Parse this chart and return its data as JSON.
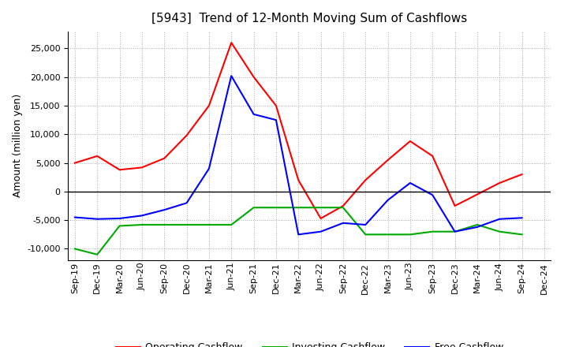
{
  "title": "[5943]  Trend of 12-Month Moving Sum of Cashflows",
  "ylabel": "Amount (million yen)",
  "background_color": "#ffffff",
  "plot_bg_color": "#ffffff",
  "x_labels": [
    "Sep-19",
    "Dec-19",
    "Mar-20",
    "Jun-20",
    "Sep-20",
    "Dec-20",
    "Mar-21",
    "Jun-21",
    "Sep-21",
    "Dec-21",
    "Mar-22",
    "Jun-22",
    "Sep-22",
    "Dec-22",
    "Mar-23",
    "Jun-23",
    "Sep-23",
    "Dec-23",
    "Mar-24",
    "Jun-24",
    "Sep-24",
    "Dec-24"
  ],
  "operating": [
    5000,
    6200,
    3800,
    4200,
    5800,
    9800,
    15000,
    26000,
    20000,
    15000,
    2000,
    -4700,
    -2500,
    2000,
    5500,
    8800,
    6200,
    -2500,
    -500,
    1500,
    3000,
    null
  ],
  "investing": [
    -10000,
    -11000,
    -6000,
    -5800,
    -5800,
    -5800,
    -5800,
    -5800,
    -2800,
    -2800,
    -2800,
    -2800,
    -2800,
    -7500,
    -7500,
    -7500,
    -7000,
    -7000,
    -5800,
    -7000,
    -7500,
    null
  ],
  "free": [
    -4500,
    -4800,
    -4700,
    -4200,
    -3200,
    -2000,
    4000,
    20200,
    13500,
    12500,
    -7500,
    -7000,
    -5500,
    -5800,
    -1500,
    1500,
    -600,
    -7000,
    -6200,
    -4800,
    -4600,
    null
  ],
  "operating_color": "#ff0000",
  "investing_color": "#00aa00",
  "free_color": "#0000ff",
  "ylim": [
    -12000,
    28000
  ],
  "yticks": [
    -10000,
    -5000,
    0,
    5000,
    10000,
    15000,
    20000,
    25000
  ],
  "legend_labels": [
    "Operating Cashflow",
    "Investing Cashflow",
    "Free Cashflow"
  ],
  "title_fontsize": 11,
  "axis_fontsize": 8,
  "ylabel_fontsize": 9
}
